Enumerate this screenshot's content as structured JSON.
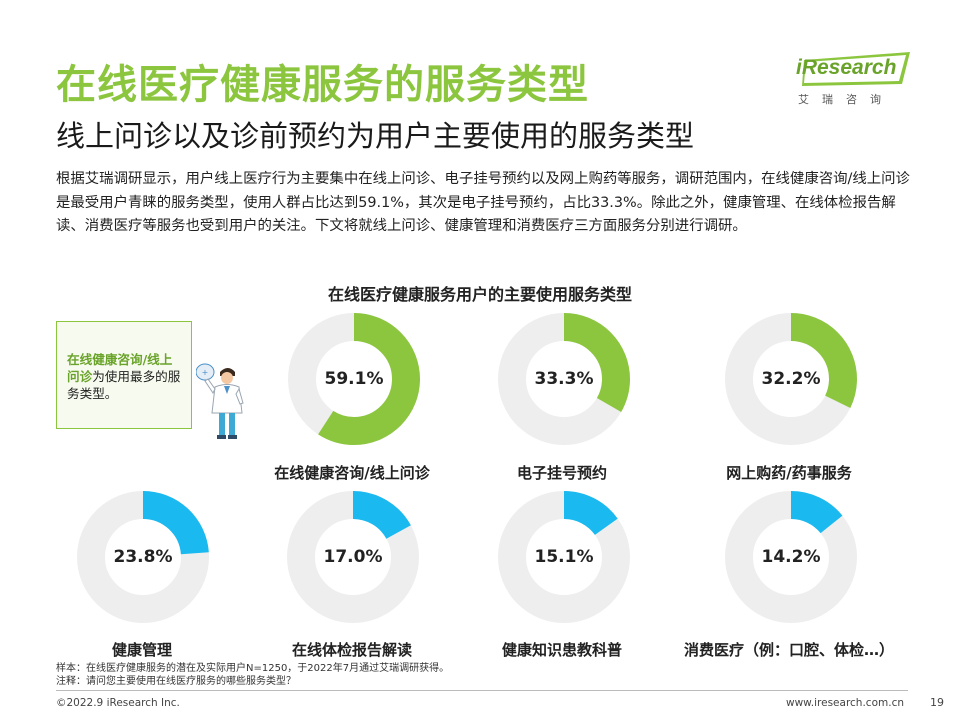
{
  "header": {
    "title": "在线医疗健康服务的服务类型",
    "subtitle": "线上问诊以及诊前预约为用户主要使用的服务类型"
  },
  "logo": {
    "name": "iResearch",
    "tagline": "艾瑞咨询"
  },
  "intro": "根据艾瑞调研显示，用户线上医疗行为主要集中在线上问诊、电子挂号预约以及网上购药等服务，调研范围内，在线健康咨询/线上问诊是最受用户青睐的服务类型，使用人群占比达到59.1%，其次是电子挂号预约，占比33.3%。除此之外，健康管理、在线体检报告解读、消费医疗等服务也受到用户的关注。下文将就线上问诊、健康管理和消费医疗三方面服务分别进行调研。",
  "callout": {
    "highlight": "在线健康咨询/线上问诊",
    "rest": "为使用最多的服务类型。"
  },
  "colors": {
    "accent_green": "#8cc63f",
    "accent_blue": "#1ab9ef",
    "track_gray": "#eeeeee"
  },
  "chart_data": {
    "type": "pie",
    "style": "donut",
    "title": "在线医疗健康服务用户的主要使用服务类型",
    "unit": "%",
    "categories": [
      "在线健康咨询/线上问诊",
      "电子挂号预约",
      "网上购药/药事服务",
      "健康管理",
      "在线体检报告解读",
      "健康知识患教科普",
      "消费医疗（例：口腔、体检…）"
    ],
    "values": [
      59.1,
      33.3,
      32.2,
      23.8,
      17.0,
      15.1,
      14.2
    ],
    "value_labels": [
      "59.1%",
      "33.3%",
      "32.2%",
      "23.8%",
      "17.0%",
      "15.1%",
      "14.2%"
    ],
    "colors": [
      "#8cc63f",
      "#8cc63f",
      "#8cc63f",
      "#1ab9ef",
      "#1ab9ef",
      "#1ab9ef",
      "#1ab9ef"
    ]
  },
  "notes": {
    "sample": "样本：在线医疗健康服务的潜在及实际用户N=1250，于2022年7月通过艾瑞调研获得。",
    "question": "注释：请问您主要使用在线医疗服务的哪些服务类型？"
  },
  "footer": {
    "copyright": "©2022.9 iResearch Inc.",
    "website": "www.iresearch.com.cn",
    "page": "19"
  }
}
